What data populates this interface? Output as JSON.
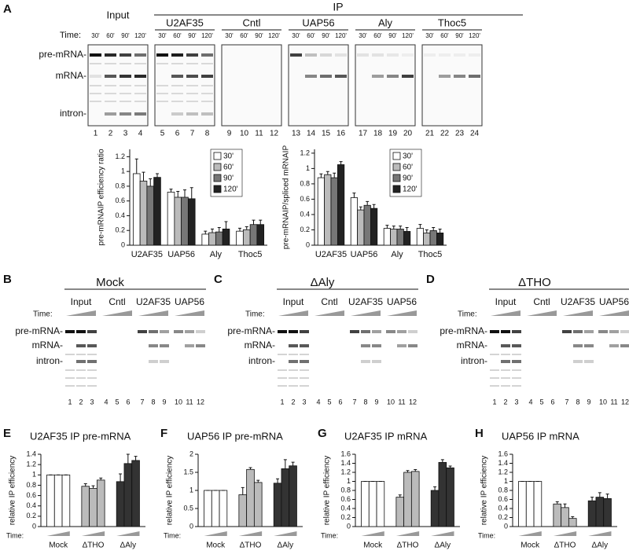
{
  "panel_letters": [
    "A",
    "B",
    "C",
    "D",
    "E",
    "F",
    "G",
    "H"
  ],
  "gel_a": {
    "ip_label": "IP",
    "time_label": "Time:",
    "groups": [
      "Input",
      "U2AF35",
      "Cntl",
      "UAP56",
      "Aly",
      "Thoc5"
    ],
    "times": [
      "30'",
      "60'",
      "90'",
      "120'"
    ],
    "rows": [
      "pre-mRNA-",
      "mRNA-",
      "intron-"
    ],
    "lanes": [
      1,
      2,
      3,
      4,
      5,
      6,
      7,
      8,
      9,
      10,
      11,
      12,
      13,
      14,
      15,
      16,
      17,
      18,
      19,
      20,
      21,
      22,
      23,
      24
    ]
  },
  "gels": [
    {
      "title": "Mock",
      "time_label": "Time:",
      "groups": [
        "Input",
        "Cntl",
        "U2AF35",
        "UAP56"
      ],
      "rows": [
        "pre-mRNA-",
        "mRNA-",
        "intron-"
      ],
      "lanes": [
        1,
        2,
        3,
        4,
        5,
        6,
        7,
        8,
        9,
        10,
        11,
        12
      ]
    },
    {
      "title": "ΔAly",
      "time_label": "Time:",
      "groups": [
        "Input",
        "Cntl",
        "U2AF35",
        "UAP56"
      ],
      "rows": [
        "pre-mRNA-",
        "mRNA-",
        "intron-"
      ],
      "lanes": [
        1,
        2,
        3,
        4,
        5,
        6,
        7,
        8,
        9,
        10,
        11,
        12
      ]
    },
    {
      "title": "ΔTHO",
      "time_label": "Time:",
      "groups": [
        "Input",
        "Cntl",
        "U2AF35",
        "UAP56"
      ],
      "rows": [
        "pre-mRNA-",
        "mRNA-",
        "intron-"
      ],
      "lanes": [
        1,
        2,
        3,
        4,
        5,
        6,
        7,
        8,
        9,
        10,
        11,
        12
      ]
    }
  ],
  "chart_data": [
    {
      "type": "bar",
      "ylabel": "pre-mRNAIP efficiency ratio",
      "categories": [
        "U2AF35",
        "UAP56",
        "Aly",
        "Thoc5"
      ],
      "series": [
        {
          "name": "30'",
          "color": "#ffffff",
          "values": [
            0.97,
            0.72,
            0.15,
            0.19
          ],
          "errors": [
            0.2,
            0.04,
            0.04,
            0.04
          ]
        },
        {
          "name": "60'",
          "color": "#bbbbbb",
          "values": [
            0.87,
            0.65,
            0.17,
            0.21
          ],
          "errors": [
            0.12,
            0.08,
            0.05,
            0.04
          ]
        },
        {
          "name": "90'",
          "color": "#777777",
          "values": [
            0.8,
            0.65,
            0.18,
            0.28
          ],
          "errors": [
            0.1,
            0.1,
            0.06,
            0.06
          ]
        },
        {
          "name": "120'",
          "color": "#222222",
          "values": [
            0.92,
            0.63,
            0.22,
            0.28
          ],
          "errors": [
            0.05,
            0.15,
            0.1,
            0.06
          ]
        }
      ],
      "ylim": [
        0,
        1.3
      ],
      "yticks": [
        0,
        0.2,
        0.4,
        0.6,
        0.8,
        1,
        1.2
      ],
      "legend": "upper right"
    },
    {
      "type": "bar",
      "ylabel": "pre-mRNAIP/spliced mRNAIP",
      "categories": [
        "U2AF35",
        "UAP56",
        "Aly",
        "Thoc5"
      ],
      "series": [
        {
          "name": "30'",
          "color": "#ffffff",
          "values": [
            0.88,
            0.62,
            0.22,
            0.22
          ],
          "errors": [
            0.05,
            0.06,
            0.04,
            0.05
          ]
        },
        {
          "name": "60'",
          "color": "#bbbbbb",
          "values": [
            0.92,
            0.46,
            0.21,
            0.16
          ],
          "errors": [
            0.04,
            0.04,
            0.04,
            0.04
          ]
        },
        {
          "name": "90'",
          "color": "#777777",
          "values": [
            0.88,
            0.52,
            0.21,
            0.19
          ],
          "errors": [
            0.06,
            0.05,
            0.04,
            0.04
          ]
        },
        {
          "name": "120'",
          "color": "#222222",
          "values": [
            1.05,
            0.48,
            0.18,
            0.16
          ],
          "errors": [
            0.04,
            0.05,
            0.05,
            0.05
          ]
        }
      ],
      "ylim": [
        0,
        1.25
      ],
      "yticks": [
        0,
        0.2,
        0.4,
        0.6,
        0.8,
        1,
        1.2
      ],
      "legend": "upper right"
    },
    {
      "type": "bar",
      "title": "U2AF35 IP pre-mRNA",
      "ylabel": "relative IP efficiency",
      "time_label": "Time:",
      "series": [
        {
          "name": "Mock",
          "color": "#ffffff",
          "values": [
            1,
            1,
            1
          ],
          "errors": [
            0,
            0,
            0
          ]
        },
        {
          "name": "ΔTHO",
          "color": "#bbbbbb",
          "values": [
            0.78,
            0.74,
            0.9
          ],
          "errors": [
            0.05,
            0.05,
            0.04
          ]
        },
        {
          "name": "ΔAly",
          "color": "#333333",
          "values": [
            0.87,
            1.22,
            1.28
          ],
          "errors": [
            0.15,
            0.18,
            0.08
          ]
        }
      ],
      "ylim": [
        0,
        1.4
      ],
      "yticks": [
        0,
        0.2,
        0.4,
        0.6,
        0.8,
        1,
        1.2,
        1.4
      ]
    },
    {
      "type": "bar",
      "title": "UAP56 IP pre-mRNA",
      "ylabel": "relative IP efficiency",
      "time_label": "Time:",
      "series": [
        {
          "name": "Mock",
          "color": "#ffffff",
          "values": [
            1,
            1,
            1
          ],
          "errors": [
            0,
            0,
            0
          ]
        },
        {
          "name": "ΔTHO",
          "color": "#bbbbbb",
          "values": [
            0.88,
            1.58,
            1.22
          ],
          "errors": [
            0.2,
            0.05,
            0.06
          ]
        },
        {
          "name": "ΔAly",
          "color": "#333333",
          "values": [
            1.2,
            1.6,
            1.68
          ],
          "errors": [
            0.12,
            0.25,
            0.1
          ]
        }
      ],
      "ylim": [
        0,
        2
      ],
      "yticks": [
        0,
        0.5,
        1,
        1.5,
        2
      ]
    },
    {
      "type": "bar",
      "title": "U2AF35 IP mRNA",
      "ylabel": "relative IP efficiency",
      "time_label": "Time:",
      "series": [
        {
          "name": "Mock",
          "color": "#ffffff",
          "values": [
            1,
            1,
            1
          ],
          "errors": [
            0,
            0,
            0
          ]
        },
        {
          "name": "ΔTHO",
          "color": "#bbbbbb",
          "values": [
            0.65,
            1.2,
            1.22
          ],
          "errors": [
            0.05,
            0.04,
            0.04
          ]
        },
        {
          "name": "ΔAly",
          "color": "#333333",
          "values": [
            0.8,
            1.42,
            1.3
          ],
          "errors": [
            0.08,
            0.06,
            0.04
          ]
        }
      ],
      "ylim": [
        0,
        1.6
      ],
      "yticks": [
        0,
        0.2,
        0.4,
        0.6,
        0.8,
        1,
        1.2,
        1.4,
        1.6
      ]
    },
    {
      "type": "bar",
      "title": "UAP56 IP mRNA",
      "ylabel": "relative IP efficiency",
      "time_label": "Time:",
      "series": [
        {
          "name": "Mock",
          "color": "#ffffff",
          "values": [
            1,
            1,
            1
          ],
          "errors": [
            0,
            0,
            0
          ]
        },
        {
          "name": "ΔTHO",
          "color": "#bbbbbb",
          "values": [
            0.5,
            0.42,
            0.18
          ],
          "errors": [
            0.05,
            0.08,
            0.04
          ]
        },
        {
          "name": "ΔAly",
          "color": "#333333",
          "values": [
            0.57,
            0.65,
            0.62
          ],
          "errors": [
            0.08,
            0.1,
            0.1
          ]
        }
      ],
      "ylim": [
        0,
        1.6
      ],
      "yticks": [
        0,
        0.2,
        0.4,
        0.6,
        0.8,
        1,
        1.2,
        1.4,
        1.6
      ]
    }
  ]
}
